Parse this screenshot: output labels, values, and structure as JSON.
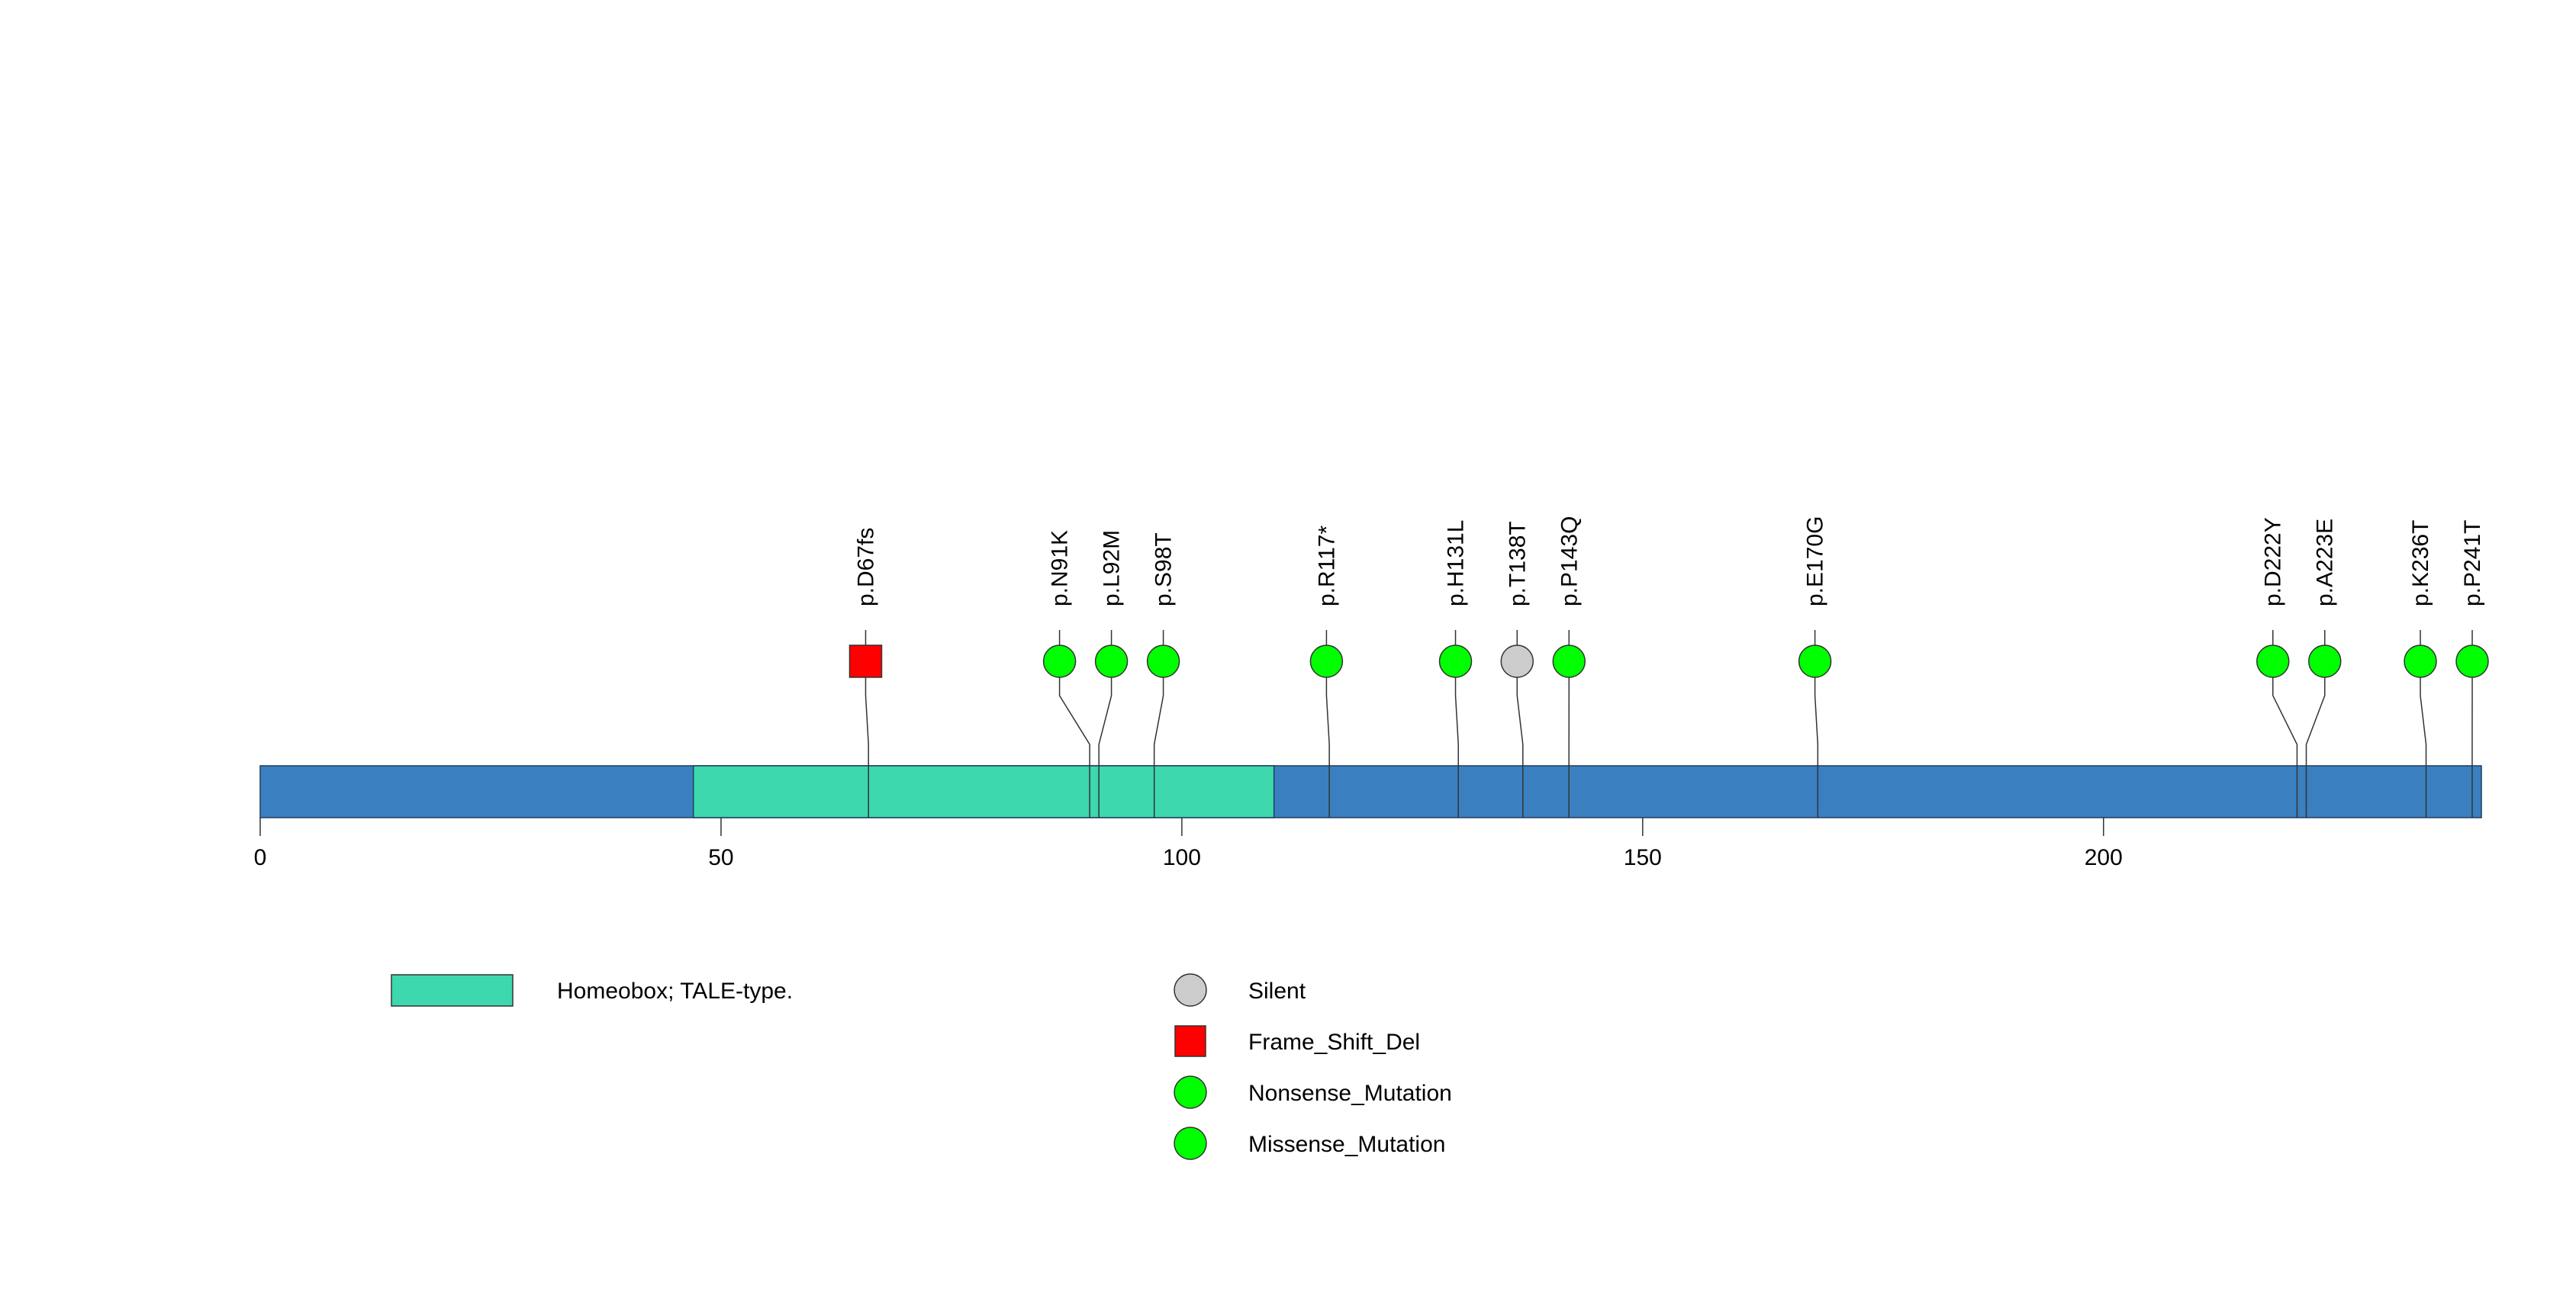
{
  "chart_data": {
    "type": "lollipop",
    "protein_length": 241,
    "axis": {
      "xlim": [
        0,
        241
      ],
      "ticks": [
        0,
        50,
        100,
        150,
        200
      ]
    },
    "protein_color": "#3A80C1",
    "domains": [
      {
        "name": "Homeobox; TALE-type.",
        "start": 47,
        "end": 110,
        "color": "#3DD8AE"
      }
    ],
    "mutations": [
      {
        "label": "p.D67fs",
        "position": 66,
        "type": "Frame_Shift_Del"
      },
      {
        "label": "p.N91K",
        "position": 90,
        "type": "Missense_Mutation"
      },
      {
        "label": "p.L92M",
        "position": 91,
        "type": "Missense_Mutation"
      },
      {
        "label": "p.S98T",
        "position": 97,
        "type": "Missense_Mutation"
      },
      {
        "label": "p.R117*",
        "position": 116,
        "type": "Nonsense_Mutation"
      },
      {
        "label": "p.H131L",
        "position": 130,
        "type": "Missense_Mutation"
      },
      {
        "label": "p.T138T",
        "position": 137,
        "type": "Silent"
      },
      {
        "label": "p.P143Q",
        "position": 142,
        "type": "Missense_Mutation"
      },
      {
        "label": "p.E170G",
        "position": 169,
        "type": "Missense_Mutation"
      },
      {
        "label": "p.D222Y",
        "position": 221,
        "type": "Missense_Mutation"
      },
      {
        "label": "p.A223E",
        "position": 222,
        "type": "Missense_Mutation"
      },
      {
        "label": "p.K236T",
        "position": 235,
        "type": "Missense_Mutation"
      },
      {
        "label": "p.P241T",
        "position": 240,
        "type": "Missense_Mutation"
      }
    ],
    "legend_domains": [
      {
        "label": "Homeobox; TALE-type.",
        "color": "#3DD8AE"
      }
    ],
    "legend_mutations": [
      {
        "label": "Silent",
        "shape": "circle",
        "color": "#CCCCCC"
      },
      {
        "label": "Frame_Shift_Del",
        "shape": "square",
        "color": "#FF0000"
      },
      {
        "label": "Nonsense_Mutation",
        "shape": "circle",
        "color": "#00FF00"
      },
      {
        "label": "Missense_Mutation",
        "shape": "circle",
        "color": "#00FF00"
      }
    ],
    "type_colors": {
      "Silent": "#CCCCCC",
      "Frame_Shift_Del": "#FF0000",
      "Nonsense_Mutation": "#00FF00",
      "Missense_Mutation": "#00FF00"
    }
  }
}
